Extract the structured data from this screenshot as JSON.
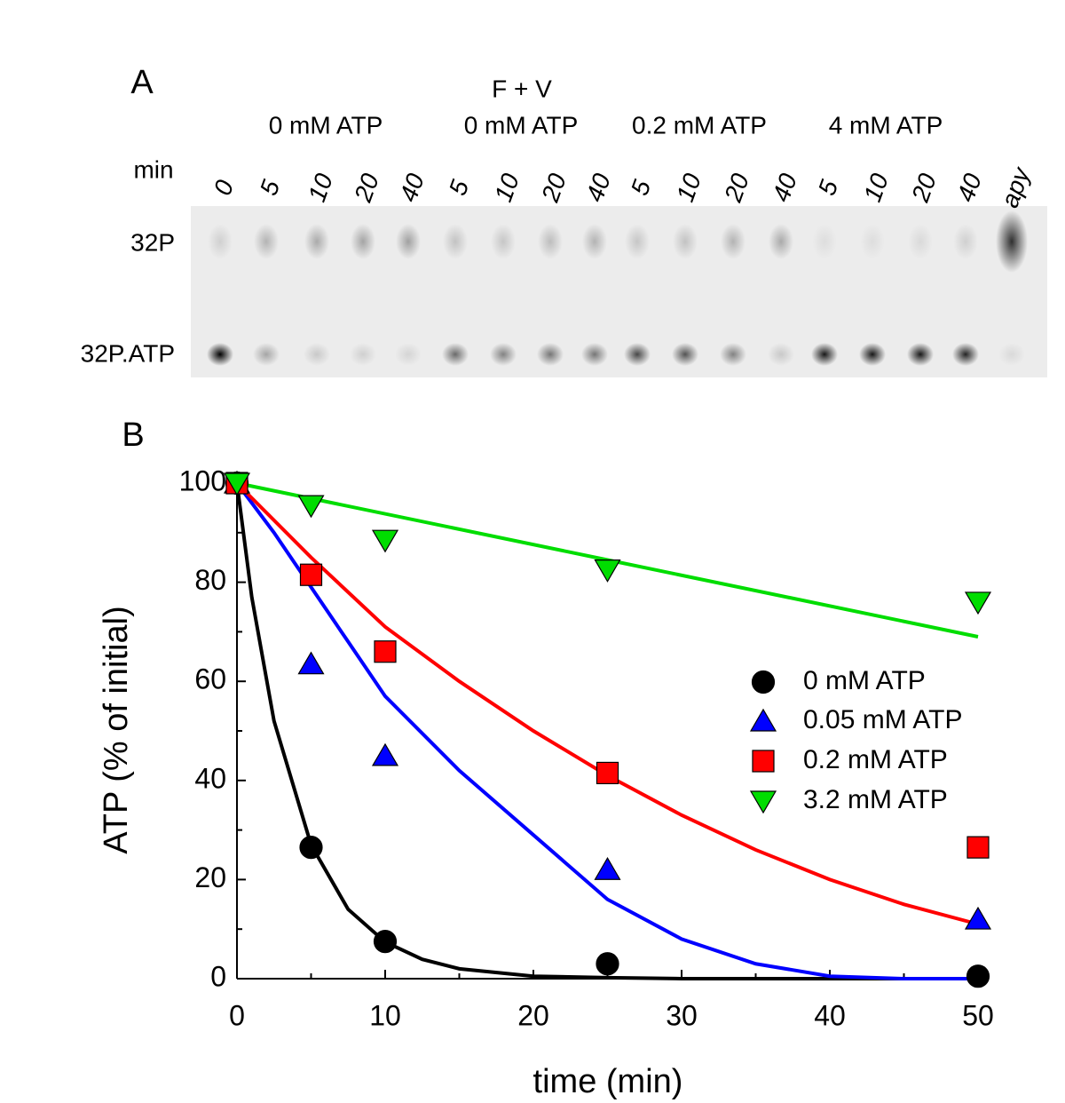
{
  "gel": {
    "panel": "A",
    "header": "F + V",
    "groups": [
      "0 mM ATP",
      "0 mM ATP",
      "0.2 mM ATP",
      "4 mM ATP"
    ],
    "row_label": "min",
    "lanes": [
      "0",
      "5",
      "10",
      "20",
      "40",
      "5",
      "10",
      "20",
      "40",
      "5",
      "10",
      "20",
      "40",
      "5",
      "10",
      "20",
      "40",
      "apy"
    ],
    "bands": [
      "32P",
      "32P.ATP"
    ]
  },
  "chart_data": {
    "type": "scatter",
    "panel": "B",
    "xlabel": "time (min)",
    "ylabel": "ATP (% of initial)",
    "xlim": [
      0,
      50
    ],
    "ylim": [
      0,
      100
    ],
    "xticks": [
      0,
      10,
      20,
      30,
      40,
      50
    ],
    "yticks": [
      0,
      20,
      40,
      60,
      80,
      100
    ],
    "legend": "right",
    "series": [
      {
        "name": "0 mM ATP",
        "color": "#000000",
        "marker": "circle",
        "x": [
          0,
          5,
          10,
          25,
          50
        ],
        "values": [
          100,
          26.5,
          7.5,
          3,
          0.5
        ],
        "fit": {
          "x": [
            0,
            1,
            2.5,
            5,
            7.5,
            10,
            12.5,
            15,
            20,
            25,
            30,
            40,
            50
          ],
          "values": [
            100,
            77,
            52,
            27,
            14,
            7.4,
            3.9,
            2,
            0.5,
            0.2,
            0,
            0,
            0
          ]
        }
      },
      {
        "name": "0.05 mM ATP",
        "color": "#0000ff",
        "marker": "triangle-up",
        "x": [
          0,
          5,
          10,
          25,
          50
        ],
        "values": [
          100,
          63.5,
          45,
          22,
          12
        ],
        "fit": {
          "x": [
            0,
            2.5,
            5,
            7.5,
            10,
            15,
            20,
            25,
            30,
            35,
            40,
            45,
            50
          ],
          "values": [
            100,
            90,
            79,
            68,
            57,
            42,
            29,
            16,
            8,
            3,
            0.5,
            0,
            0
          ]
        }
      },
      {
        "name": "0.2 mM ATP",
        "color": "#ff0000",
        "marker": "square",
        "x": [
          0,
          5,
          10,
          25,
          50
        ],
        "values": [
          100,
          81.5,
          66,
          41.5,
          26.5
        ],
        "fit": {
          "x": [
            0,
            5,
            10,
            15,
            20,
            25,
            30,
            35,
            40,
            45,
            50
          ],
          "values": [
            100,
            85,
            71,
            60,
            50,
            41,
            33,
            26,
            20,
            15,
            11
          ]
        }
      },
      {
        "name": "3.2 mM ATP",
        "color": "#00dd00",
        "marker": "triangle-down",
        "x": [
          0,
          5,
          10,
          25,
          50
        ],
        "values": [
          100,
          95.5,
          88.5,
          82.5,
          76
        ],
        "fit": {
          "x": [
            0,
            25,
            50
          ],
          "values": [
            100,
            84.5,
            69
          ]
        }
      }
    ]
  }
}
